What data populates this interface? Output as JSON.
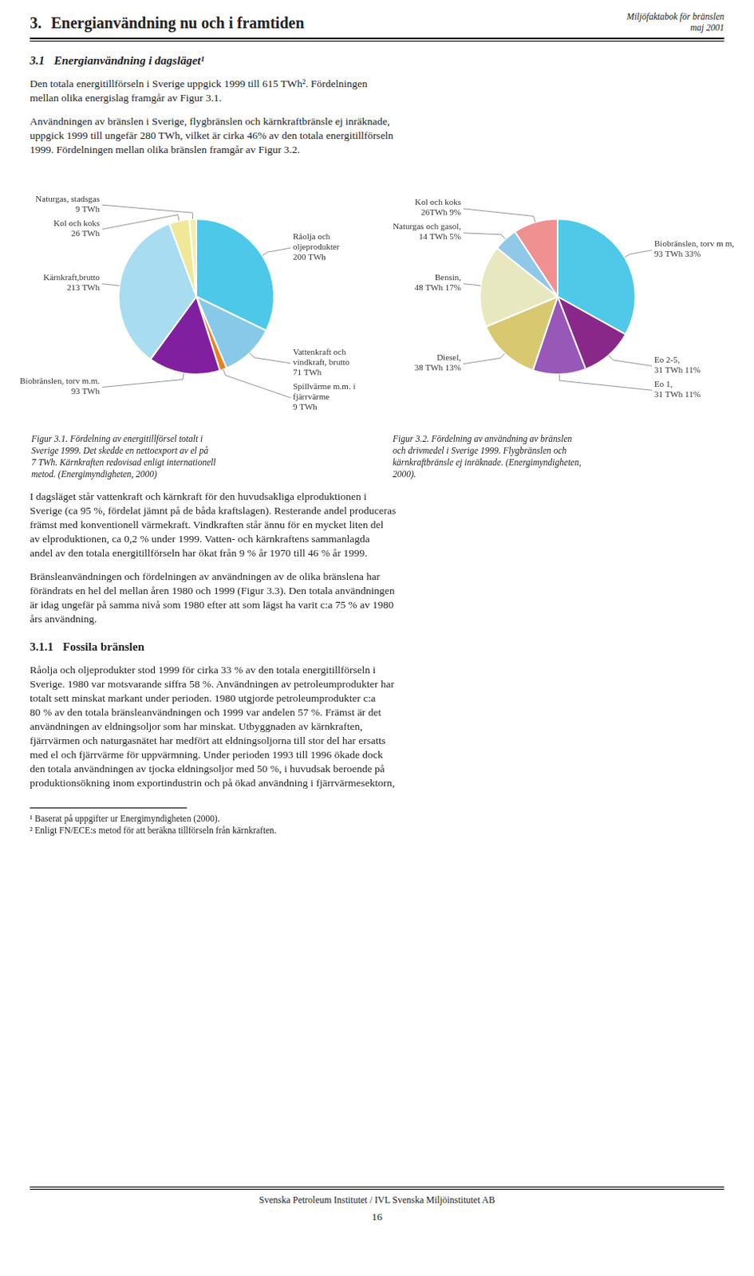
{
  "page": {
    "header_right": [
      "Miljöfaktabok för bränslen",
      "maj 2001"
    ],
    "heading_num": "3.",
    "heading": "Energianvändning nu och i framtiden",
    "section_num": "3.1",
    "section": "Energianvändning i dagsläget¹",
    "intro": [
      [
        "Den totala energitillförseln i Sverige uppgick 1999 till 615 TWh². Fördelningen",
        "mellan olika energislag framgår av Figur 3.1."
      ],
      [
        "Användningen av bränslen i Sverige, flygbränslen och kärnkraftbränsle ej inräknade,",
        "uppgick 1999 till ungefär 280 TWh, vilket är cirka 46% av den totala energitillförseln",
        "1999. Fördelningen mellan olika bränslen framgår av Figur 3.2."
      ]
    ],
    "body": [
      [
        "I dagsläget står vattenkraft och kärnkraft för den huvudsakliga elproduktionen i",
        "Sverige (ca 95 %, fördelat jämnt på de båda kraftslagen). Resterande andel produceras",
        "främst med konventionell värmekraft. Vindkraften står ännu för en mycket liten del",
        "av elproduktionen, ca 0,2 % under 1999. Vatten- och kärnkraftens sammanlagda",
        "andel av den totala energitillförseln har ökat från 9 % år 1970 till 46 % år 1999."
      ],
      [
        "Bränsleanvändningen och fördelningen av användningen av de olika bränslena har",
        "förändrats en hel del mellan åren 1980 och 1999 (Figur 3.3). Den totala användningen",
        "är idag ungefär på samma nivå som 1980 efter att som lägst ha varit c:a 75 % av 1980",
        "års användning."
      ]
    ],
    "subsection_num": "3.1.1",
    "subsection": "Fossila bränslen",
    "body_after": [
      [
        "Råolja och oljeprodukter stod 1999 för cirka 33 % av den totala energitillförseln i",
        "Sverige. 1980 var motsvarande siffra 58 %. Användningen av petroleumprodukter har",
        "totalt sett minskat markant under perioden. 1980 utgjorde petroleumprodukter c:a",
        "80 % av den totala bränsleanvändningen och 1999 var andelen 57 %. Främst är det",
        "användningen av eldningsoljor som har minskat. Utbyggnaden av kärnkraften,",
        "fjärrvärmen och naturgasnätet har medfört att eldningsoljorna till stor del har ersatts",
        "med el och fjärrvärme för uppvärmning. Under perioden 1993 till 1996 ökade dock",
        "den totala användningen av tjocka eldningsoljor med 50 %, i huvudsak beroende på",
        "produktionsökning inom exportindustrin och på ökad användning i fjärrvärmesektorn,"
      ]
    ],
    "footnotes": [
      "¹ Baserat på uppgifter ur Energimyndigheten (2000).",
      "² Enligt FN/ECE:s metod för att beräkna tillförseln från kärnkraften."
    ],
    "footer": "Svenska Petroleum Institutet / IVL Svenska Miljöinstitutet AB",
    "page_number": "16"
  },
  "chart_data": [
    {
      "type": "pie",
      "title": [
        "Figur 3.1. Fördelning av energitillförsel totalt i",
        "Sverige 1999. Det skedde en nettoexport av el på",
        "7 TWh. Kärnkraften redovisad enligt internationell",
        "metod. (Energimyndigheten, 2000)"
      ],
      "categories": [
        "Råolja och oljeprodukter",
        "Vattenkraft och vindkraft, brutto",
        "Spillvärme m.m. i fjärrvärme",
        "Biobränslen, torv m.m.",
        "Kärnkraft,brutto",
        "Kol och koks",
        "Naturgas, stadsgas"
      ],
      "values": [
        200,
        71,
        9,
        93,
        213,
        26,
        9
      ],
      "value_labels": [
        "200 TWh",
        "71 TWh",
        "9 TWh",
        "93 TWh",
        "213 TWh",
        "26 TWh",
        "9 TWh"
      ],
      "colors": [
        "#4DC8E8",
        "#88C8E8",
        "#E88020",
        "#8020A0",
        "#A8DCF0",
        "#F0E898",
        "#F0F0B0"
      ],
      "data_labels": true
    },
    {
      "type": "pie",
      "title": [
        "Figur 3.2. Fördelning av användning av bränslen",
        "och drivmedel i Sverige 1999. Flygbränslen och",
        "kärnkraftbränsle ej inräknade. (Energimyndigheten,",
        "2000)."
      ],
      "categories": [
        "Biobränslen, torv m m,",
        "Eo 2-5,",
        "Eo 1,",
        "Diesel,",
        "Bensin,",
        "Naturgas och gasol,",
        "Kol och koks"
      ],
      "values": [
        93,
        31,
        31,
        38,
        48,
        14,
        26
      ],
      "value_labels": [
        "93 TWh 33%",
        "31 TWh 11%",
        "31 TWh 11%",
        "38 TWh 13%",
        "48 TWh 17%",
        "14 TWh 5%",
        "26TWh 9%"
      ],
      "colors": [
        "#50C8E8",
        "#882888",
        "#9858B8",
        "#D8C870",
        "#E8E8C0",
        "#90C8E8",
        "#F09090"
      ],
      "data_labels": true
    }
  ]
}
